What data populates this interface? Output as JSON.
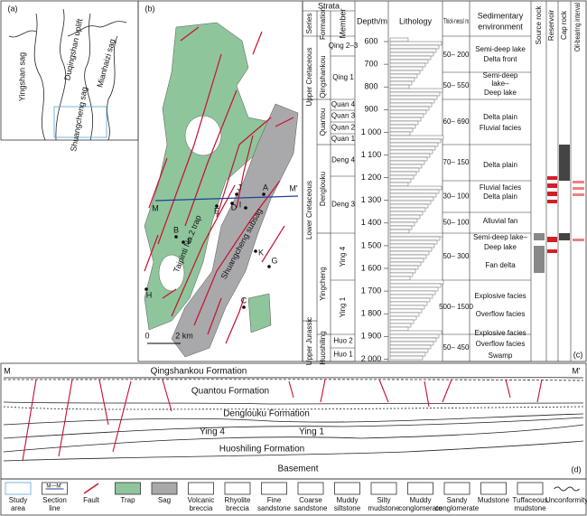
{
  "panel_a": {
    "label": "(a)",
    "areas": [
      "Yingshan sag",
      "Duqingshan uplift",
      "Mianhaizi sag",
      "Shuangcheng sag"
    ]
  },
  "panel_b": {
    "label": "(b)",
    "wells": [
      "A",
      "B",
      "C",
      "D",
      "E",
      "F",
      "G",
      "H",
      "I",
      "J",
      "K"
    ],
    "section_start": "M",
    "section_end": "M'",
    "trap": "Taipinti No.2 trap",
    "subsag": "Shuangcheng subsag",
    "scale_start": "0",
    "scale_end": "2 km"
  },
  "panel_c": {
    "label": "(c)",
    "headers": {
      "strata": "Strata",
      "series": "Series",
      "formation": "Formation",
      "member": "Member",
      "depth": "Depth/m",
      "lithology": "Lithology",
      "thickness": "Thick-ness/ m",
      "environment_1": "Sedimentary",
      "environment_2": "environment",
      "source": "Source rock",
      "reservoir": "Reservoir",
      "cap": "Cap rock",
      "oil": "Oil-bearing interval"
    },
    "series": [
      "Upper Cretaceous",
      "Lower Cretaceous",
      "Upper Jurassic"
    ],
    "formations": [
      "Qingshankou",
      "Quantou",
      "Denglouku",
      "Yingcheng",
      "Huoshiling"
    ],
    "members": [
      "Qing 2–3",
      "Qing 1",
      "Quan 4",
      "Quan 3",
      "Quan 2",
      "Quan 1",
      "Deng 4",
      "Deng 3",
      "Ying 4",
      "Ying 1",
      "Huo 2",
      "Huo 1"
    ],
    "depths": [
      "600",
      "700",
      "800",
      "900",
      "1 000",
      "1 100",
      "1 200",
      "1 300",
      "1 400",
      "1 500",
      "1 600",
      "1 700",
      "1 800",
      "1 900",
      "2 000"
    ],
    "thickness": [
      "50– 200",
      "50– 550",
      "60– 690",
      "70– 150",
      "30– 100",
      "50– 100",
      "50– 300",
      "500– 1500",
      "50– 450"
    ],
    "environment": [
      "Semi-deep lake",
      "Delta front",
      "Semi-deep",
      "lake–",
      "Deep lake",
      "Delta plain",
      "Fluvial facies",
      "Delta plain",
      "Fluvial facies",
      "Delta plain",
      "Alluvial fan",
      "Semi-deep lake–",
      "Deep lake",
      "Fan delta",
      "Explosive facies",
      "Overflow facies",
      "Explosive facies",
      "Overflow facies",
      "Swamp"
    ]
  },
  "panel_d": {
    "label": "(d)",
    "start": "M",
    "end": "M'",
    "units": [
      "Qingshankou Formation",
      "Quantou Formation",
      "Denglouku Formation",
      "Ying 4",
      "Ying 1",
      "Huoshiling Formation",
      "Basement"
    ]
  },
  "legend": {
    "section_symbol": "M—M'",
    "items": [
      [
        "Study",
        "area"
      ],
      [
        "Section",
        "line"
      ],
      [
        "Fault"
      ],
      [
        "Trap"
      ],
      [
        "Sag"
      ],
      [
        "Volcanic",
        "breccia"
      ],
      [
        "Rhyolite",
        "breccia"
      ],
      [
        "Fine",
        "sandstone"
      ],
      [
        "Coarse",
        "sandstone"
      ],
      [
        "Muddy",
        "siltstone"
      ],
      [
        "Silty",
        "mudstone"
      ],
      [
        "Muddy",
        "conglomerate"
      ],
      [
        "Sandy",
        "conglomerate"
      ],
      [
        "Mudstone"
      ],
      [
        "Tuffaceous",
        "mudstone"
      ],
      [
        "Unconformity"
      ]
    ]
  }
}
